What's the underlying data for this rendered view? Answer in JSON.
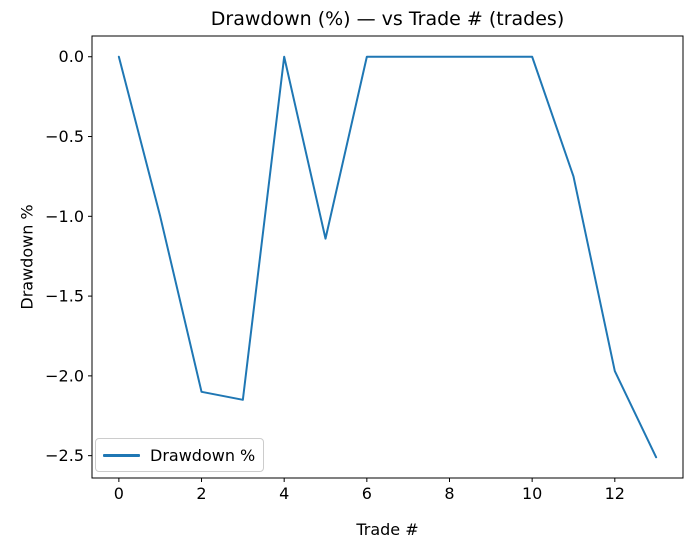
{
  "figure": {
    "title": "Drawdown (%) — vs Trade # (trades)",
    "xlabel": "Trade #",
    "ylabel": "Drawdown %",
    "legend_label": "Drawdown %",
    "colors": {
      "line": "#1f77b4",
      "axes": "#000000",
      "legend_border": "#cccccc",
      "background": "#ffffff"
    }
  },
  "chart_data": {
    "type": "line",
    "title": "Drawdown (%) — vs Trade # (trades)",
    "xlabel": "Trade #",
    "ylabel": "Drawdown %",
    "x": [
      0,
      1,
      2,
      3,
      4,
      5,
      6,
      7,
      8,
      9,
      10,
      11,
      12,
      13
    ],
    "series": [
      {
        "name": "Drawdown %",
        "color": "#1f77b4",
        "values": [
          0.0,
          -1.0,
          -2.1,
          -2.15,
          0.0,
          -1.14,
          0.0,
          0.0,
          0.0,
          0.0,
          0.0,
          -0.75,
          -1.97,
          -2.51
        ]
      }
    ],
    "xticks": [
      0,
      2,
      4,
      6,
      8,
      10,
      12
    ],
    "yticks": [
      0.0,
      -0.5,
      -1.0,
      -1.5,
      -2.0,
      -2.5
    ],
    "xlim": [
      -0.65,
      13.65
    ],
    "ylim": [
      -2.64,
      0.13
    ],
    "grid": false,
    "legend": {
      "label": "Drawdown %",
      "position": "lower left"
    }
  }
}
